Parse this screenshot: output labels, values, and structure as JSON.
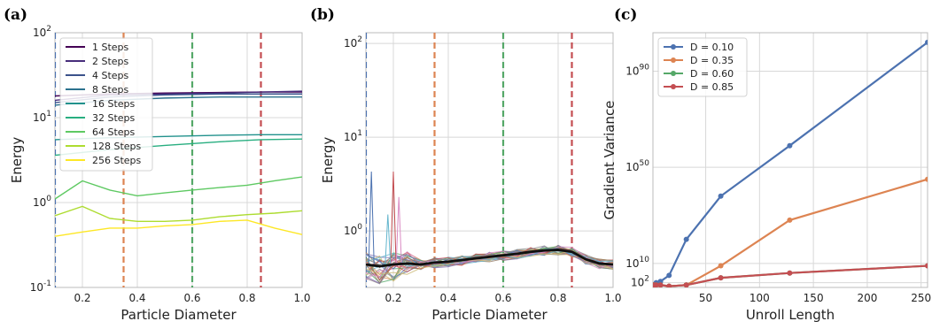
{
  "chart_data": [
    {
      "panel": "(a)",
      "type": "line",
      "xlabel": "Particle Diameter",
      "ylabel": "Energy",
      "xlim": [
        0.1,
        1.0
      ],
      "ylim": [
        0.1,
        100
      ],
      "yscale": "log",
      "x_ticks": [
        0.2,
        0.4,
        0.6,
        0.8,
        1.0
      ],
      "x_tick_labels": [
        "0.2",
        "0.4",
        "0.6",
        "0.8",
        "1.0"
      ],
      "y_ticks": [
        0.1,
        1,
        10,
        100
      ],
      "y_tick_labels": [
        "10^-1",
        "10^0",
        "10^1",
        "10^2"
      ],
      "grid": true,
      "legend_position": "top-left",
      "vlines": [
        {
          "x": 0.1,
          "color": "#4c72b0"
        },
        {
          "x": 0.35,
          "color": "#dd8452"
        },
        {
          "x": 0.6,
          "color": "#55a868"
        },
        {
          "x": 0.85,
          "color": "#c44e52"
        }
      ],
      "series": [
        {
          "name": "1 Steps",
          "color": "#440154",
          "x": [
            0.1,
            0.3,
            0.5,
            0.7,
            0.85,
            1.0
          ],
          "y": [
            18,
            19,
            19.5,
            19.8,
            20,
            20
          ]
        },
        {
          "name": "2 Steps",
          "color": "#472d7b",
          "x": [
            0.1,
            0.3,
            0.5,
            0.7,
            0.85,
            1.0
          ],
          "y": [
            16,
            18.5,
            19,
            19.5,
            20,
            20.5
          ]
        },
        {
          "name": "4 Steps",
          "color": "#3b528b",
          "x": [
            0.1,
            0.3,
            0.5,
            0.7,
            0.85,
            1.0
          ],
          "y": [
            15,
            17.5,
            18.5,
            19,
            19,
            19
          ]
        },
        {
          "name": "8 Steps",
          "color": "#2c728e",
          "x": [
            0.1,
            0.3,
            0.5,
            0.7,
            0.85,
            1.0
          ],
          "y": [
            14,
            16,
            17,
            17.5,
            17.5,
            17.5
          ]
        },
        {
          "name": "16 Steps",
          "color": "#21918c",
          "x": [
            0.1,
            0.3,
            0.5,
            0.7,
            0.85,
            1.0
          ],
          "y": [
            5.5,
            5.8,
            6,
            6.2,
            6.3,
            6.3
          ]
        },
        {
          "name": "32 Steps",
          "color": "#28ae80",
          "x": [
            0.1,
            0.3,
            0.5,
            0.7,
            0.85,
            1.0
          ],
          "y": [
            3.6,
            4.2,
            4.7,
            5.2,
            5.5,
            5.6
          ]
        },
        {
          "name": "64 Steps",
          "color": "#5ec962",
          "x": [
            0.1,
            0.2,
            0.3,
            0.4,
            0.5,
            0.6,
            0.7,
            0.8,
            0.9,
            1.0
          ],
          "y": [
            1.1,
            1.8,
            1.4,
            1.2,
            1.3,
            1.4,
            1.5,
            1.6,
            1.8,
            2.0
          ]
        },
        {
          "name": "128 Steps",
          "color": "#addc30",
          "x": [
            0.1,
            0.2,
            0.3,
            0.4,
            0.5,
            0.6,
            0.7,
            0.8,
            0.9,
            1.0
          ],
          "y": [
            0.7,
            0.9,
            0.65,
            0.6,
            0.6,
            0.62,
            0.68,
            0.72,
            0.75,
            0.8
          ]
        },
        {
          "name": "256 Steps",
          "color": "#fde725",
          "x": [
            0.1,
            0.2,
            0.3,
            0.4,
            0.5,
            0.6,
            0.7,
            0.8,
            0.9,
            1.0
          ],
          "y": [
            0.4,
            0.45,
            0.5,
            0.5,
            0.53,
            0.55,
            0.6,
            0.62,
            0.5,
            0.42
          ]
        }
      ]
    },
    {
      "panel": "(b)",
      "type": "line",
      "xlabel": "Particle Diameter",
      "ylabel": "Energy",
      "xlim": [
        0.1,
        1.0
      ],
      "ylim": [
        0.25,
        130
      ],
      "yscale": "log",
      "x_ticks": [
        0.2,
        0.4,
        0.6,
        0.8,
        1.0
      ],
      "x_tick_labels": [
        "0.2",
        "0.4",
        "0.6",
        "0.8",
        "1.0"
      ],
      "y_ticks": [
        1,
        10,
        100
      ],
      "y_tick_labels": [
        "10^0",
        "10^1",
        "10^2"
      ],
      "grid": true,
      "vlines": [
        {
          "x": 0.1,
          "color": "#4c72b0"
        },
        {
          "x": 0.35,
          "color": "#dd8452"
        },
        {
          "x": 0.6,
          "color": "#55a868"
        },
        {
          "x": 0.85,
          "color": "#c44e52"
        }
      ],
      "mean_series": {
        "color": "#111111",
        "x": [
          0.1,
          0.15,
          0.2,
          0.25,
          0.3,
          0.35,
          0.4,
          0.45,
          0.5,
          0.55,
          0.6,
          0.65,
          0.7,
          0.75,
          0.8,
          0.85,
          0.9,
          0.95,
          1.0
        ],
        "y": [
          0.44,
          0.42,
          0.44,
          0.45,
          0.44,
          0.46,
          0.47,
          0.49,
          0.51,
          0.53,
          0.55,
          0.57,
          0.6,
          0.62,
          0.63,
          0.6,
          0.5,
          0.45,
          0.44
        ]
      },
      "spikes": [
        {
          "x": 0.12,
          "y": 4.3
        },
        {
          "x": 0.2,
          "y": 4.3
        },
        {
          "x": 0.22,
          "y": 2.3
        },
        {
          "x": 0.18,
          "y": 1.5
        }
      ]
    },
    {
      "panel": "(c)",
      "type": "line",
      "xlabel": "Unroll Length",
      "ylabel": "Gradient Variance",
      "xlim": [
        1,
        256
      ],
      "ylim": [
        1,
        1e+106
      ],
      "yscale": "log",
      "x_ticks": [
        50,
        100,
        150,
        200,
        250
      ],
      "x_tick_labels": [
        "50",
        "100",
        "150",
        "200",
        "250"
      ],
      "y_ticks": [
        100,
        10000000000.0,
        1e+50,
        1e+90
      ],
      "y_tick_labels": [
        "10^2",
        "10^10",
        "10^50",
        "10^90"
      ],
      "grid": true,
      "legend_position": "top-left",
      "series": [
        {
          "name": "D =  0.10",
          "color": "#4c72b0",
          "x": [
            1,
            2,
            4,
            8,
            16,
            32,
            64,
            128,
            256
          ],
          "y_log10": [
            1,
            1,
            2,
            2.5,
            5,
            20,
            38,
            59,
            102
          ]
        },
        {
          "name": "D =  0.35",
          "color": "#dd8452",
          "x": [
            1,
            2,
            4,
            8,
            16,
            32,
            64,
            128,
            256
          ],
          "y_log10": [
            1,
            1,
            1,
            1,
            0.5,
            1,
            9,
            28,
            45
          ]
        },
        {
          "name": "D =  0.60",
          "color": "#55a868",
          "x": [
            1,
            2,
            4,
            8,
            16,
            32,
            64,
            128,
            256
          ],
          "y_log10": [
            1,
            1,
            1,
            1,
            0.5,
            1,
            4,
            6,
            9
          ]
        },
        {
          "name": "D =  0.85",
          "color": "#c44e52",
          "x": [
            1,
            2,
            4,
            8,
            16,
            32,
            64,
            128,
            256
          ],
          "y_log10": [
            1,
            1,
            1,
            1,
            0.5,
            1,
            4,
            6,
            9
          ]
        }
      ]
    }
  ]
}
